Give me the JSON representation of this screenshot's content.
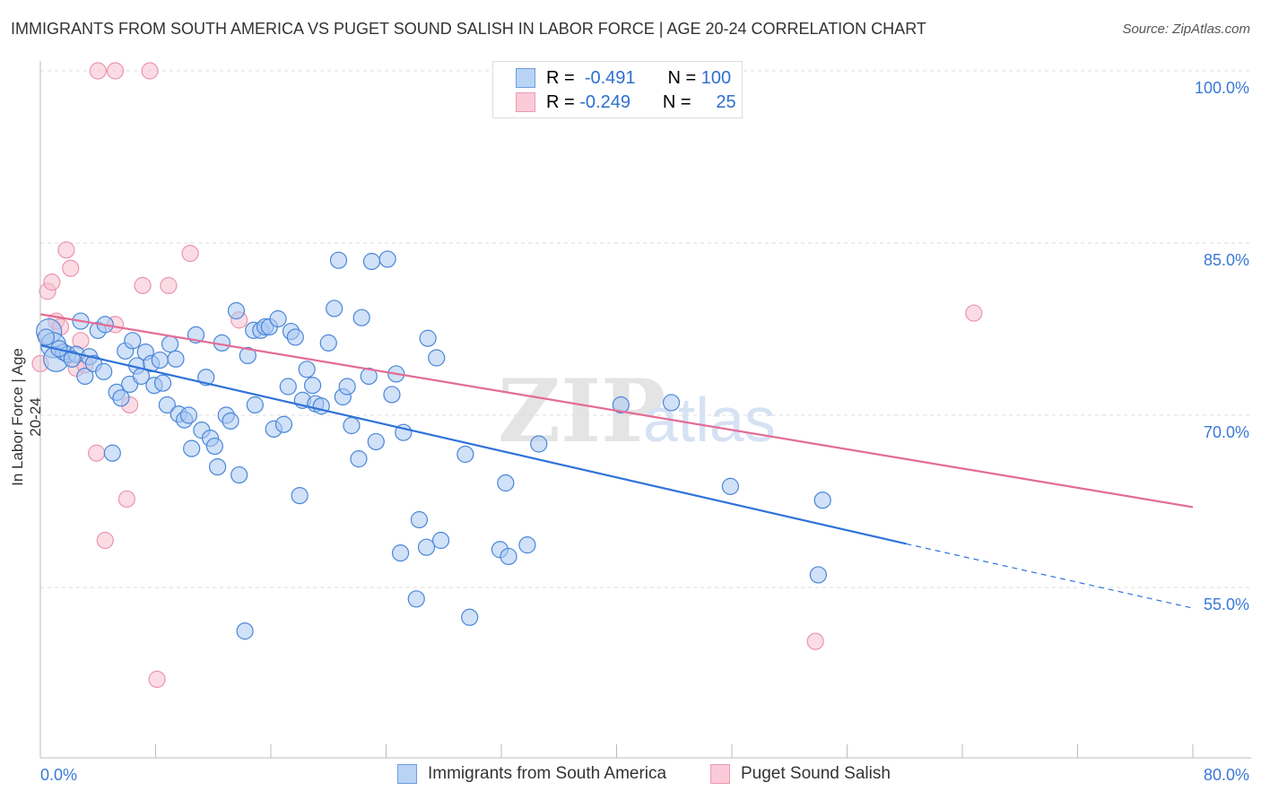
{
  "header": {
    "title": "IMMIGRANTS FROM SOUTH AMERICA VS PUGET SOUND SALISH IN LABOR FORCE | AGE 20-24 CORRELATION CHART",
    "source": "Source: ZipAtlas.com"
  },
  "legend": {
    "rows": [
      {
        "r_label": "R =",
        "r": "-0.491",
        "n_label": "N =",
        "n": "100"
      },
      {
        "r_label": "R =",
        "r": "-0.249",
        "n_label": "N =",
        "n": "25"
      }
    ]
  },
  "watermark": {
    "zip": "ZIP",
    "atlas": "atlas"
  },
  "colors": {
    "blue_fill": "#a9c8f2",
    "blue_stroke": "#4a86d8",
    "blue_line": "#2e72d8",
    "pink_fill": "#f8bfd0",
    "pink_stroke": "#ea95ae",
    "pink_line": "#e46c95"
  },
  "chart_data": {
    "type": "scatter",
    "title": "IMMIGRANTS FROM SOUTH AMERICA VS PUGET SOUND SALISH IN LABOR FORCE | AGE 20-24 CORRELATION CHART",
    "xlabel": "",
    "ylabel": "In Labor Force | Age 20-24",
    "xlim": [
      0,
      80
    ],
    "ylim": [
      40,
      101
    ],
    "x_tick_labels": [
      "0.0%",
      "80.0%"
    ],
    "y_ticks": [
      100,
      85,
      70,
      55
    ],
    "y_tick_labels": [
      "100.0%",
      "85.0%",
      "70.0%",
      "55.0%"
    ],
    "grid": true,
    "legend_position": "bottom-center",
    "series": [
      {
        "name": "Immigrants from South America",
        "points": [
          [
            0.6,
            77.3
          ],
          [
            0.9,
            76.1
          ],
          [
            1.1,
            74.9
          ],
          [
            1.6,
            75.5
          ],
          [
            1.9,
            75.3
          ],
          [
            2.5,
            75.3
          ],
          [
            2.8,
            78.2
          ],
          [
            3.1,
            73.4
          ],
          [
            3.4,
            75.1
          ],
          [
            3.7,
            74.5
          ],
          [
            4.0,
            77.4
          ],
          [
            4.4,
            73.8
          ],
          [
            4.5,
            77.9
          ],
          [
            5.0,
            66.7
          ],
          [
            5.3,
            72.0
          ],
          [
            5.6,
            71.5
          ],
          [
            5.9,
            75.6
          ],
          [
            6.2,
            72.7
          ],
          [
            6.4,
            76.5
          ],
          [
            6.7,
            74.3
          ],
          [
            7.0,
            73.4
          ],
          [
            7.3,
            75.5
          ],
          [
            7.7,
            74.5
          ],
          [
            7.9,
            72.6
          ],
          [
            8.3,
            74.8
          ],
          [
            8.5,
            72.8
          ],
          [
            8.8,
            70.9
          ],
          [
            9.0,
            76.2
          ],
          [
            9.4,
            74.9
          ],
          [
            9.6,
            70.1
          ],
          [
            10.0,
            69.6
          ],
          [
            10.3,
            70.0
          ],
          [
            10.5,
            67.1
          ],
          [
            10.8,
            77.0
          ],
          [
            11.2,
            68.7
          ],
          [
            11.5,
            73.3
          ],
          [
            11.8,
            68.0
          ],
          [
            12.1,
            67.3
          ],
          [
            12.3,
            65.5
          ],
          [
            12.6,
            76.3
          ],
          [
            12.9,
            70.0
          ],
          [
            13.2,
            69.5
          ],
          [
            13.6,
            79.1
          ],
          [
            13.8,
            64.8
          ],
          [
            14.2,
            51.2
          ],
          [
            14.4,
            75.2
          ],
          [
            14.8,
            77.4
          ],
          [
            14.9,
            70.9
          ],
          [
            15.3,
            77.4
          ],
          [
            15.6,
            77.7
          ],
          [
            15.9,
            77.7
          ],
          [
            16.2,
            68.8
          ],
          [
            16.5,
            78.4
          ],
          [
            16.9,
            69.2
          ],
          [
            17.2,
            72.5
          ],
          [
            17.4,
            77.3
          ],
          [
            17.7,
            76.8
          ],
          [
            18.0,
            63.0
          ],
          [
            18.2,
            71.3
          ],
          [
            18.5,
            74.0
          ],
          [
            18.9,
            72.6
          ],
          [
            19.1,
            71.0
          ],
          [
            19.5,
            70.8
          ],
          [
            20.0,
            76.3
          ],
          [
            20.4,
            79.3
          ],
          [
            20.7,
            83.5
          ],
          [
            21.0,
            71.6
          ],
          [
            21.3,
            72.5
          ],
          [
            21.6,
            69.1
          ],
          [
            22.1,
            66.2
          ],
          [
            22.3,
            78.5
          ],
          [
            22.8,
            73.4
          ],
          [
            23.0,
            83.4
          ],
          [
            23.3,
            67.7
          ],
          [
            24.1,
            83.6
          ],
          [
            24.4,
            71.8
          ],
          [
            24.7,
            73.6
          ],
          [
            25.0,
            58.0
          ],
          [
            25.2,
            68.5
          ],
          [
            26.1,
            54.0
          ],
          [
            26.3,
            60.9
          ],
          [
            26.8,
            58.5
          ],
          [
            26.9,
            76.7
          ],
          [
            27.5,
            75.0
          ],
          [
            27.8,
            59.1
          ],
          [
            29.5,
            66.6
          ],
          [
            29.8,
            52.4
          ],
          [
            31.9,
            58.3
          ],
          [
            32.3,
            64.1
          ],
          [
            32.5,
            57.7
          ],
          [
            33.8,
            58.7
          ],
          [
            34.6,
            67.5
          ],
          [
            40.3,
            70.9
          ],
          [
            43.8,
            71.1
          ],
          [
            47.9,
            63.8
          ],
          [
            54.0,
            56.1
          ],
          [
            54.3,
            62.6
          ],
          [
            0.4,
            76.8
          ],
          [
            1.3,
            75.8
          ],
          [
            2.2,
            74.9
          ]
        ],
        "trend": {
          "x": [
            0,
            60.1,
            80
          ],
          "y": [
            76.1,
            58.8,
            53.2
          ],
          "dashed_from": 60.1
        }
      },
      {
        "name": "Puget Sound Salish",
        "points": [
          [
            4.0,
            100
          ],
          [
            5.2,
            100
          ],
          [
            7.6,
            100
          ],
          [
            1.8,
            84.4
          ],
          [
            2.1,
            82.8
          ],
          [
            10.4,
            84.1
          ],
          [
            0.5,
            80.8
          ],
          [
            0.8,
            81.6
          ],
          [
            7.1,
            81.3
          ],
          [
            8.9,
            81.3
          ],
          [
            1.1,
            78.2
          ],
          [
            1.4,
            77.7
          ],
          [
            5.2,
            77.9
          ],
          [
            13.8,
            78.3
          ],
          [
            2.8,
            76.5
          ],
          [
            0.0,
            74.5
          ],
          [
            2.5,
            74.1
          ],
          [
            3.1,
            74.4
          ],
          [
            6.2,
            70.9
          ],
          [
            3.9,
            66.7
          ],
          [
            6.0,
            62.7
          ],
          [
            4.5,
            59.1
          ],
          [
            8.1,
            47.0
          ],
          [
            64.8,
            78.9
          ],
          [
            53.8,
            50.3
          ]
        ],
        "trend": {
          "x": [
            0,
            80
          ],
          "y": [
            78.8,
            62.0
          ]
        }
      }
    ]
  }
}
